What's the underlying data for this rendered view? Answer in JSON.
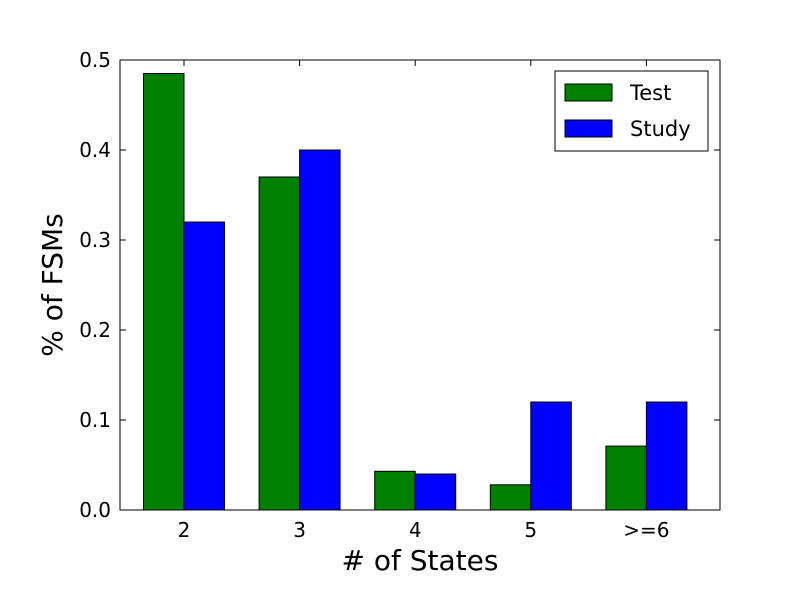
{
  "chart_data": {
    "type": "bar",
    "title": "",
    "xlabel": "# of States",
    "ylabel": "% of FSMs",
    "categories": [
      "2",
      "3",
      "4",
      "5",
      ">=6"
    ],
    "series": [
      {
        "name": "Test",
        "color": "#008000",
        "values": [
          0.485,
          0.37,
          0.043,
          0.028,
          0.071
        ]
      },
      {
        "name": "Study",
        "color": "#0000ff",
        "values": [
          0.32,
          0.4,
          0.04,
          0.12,
          0.12
        ]
      }
    ],
    "ylim": [
      0,
      0.5
    ],
    "yticks": [
      "0.0",
      "0.1",
      "0.2",
      "0.3",
      "0.4",
      "0.5"
    ],
    "grid": false,
    "legend_position": "top-right"
  }
}
